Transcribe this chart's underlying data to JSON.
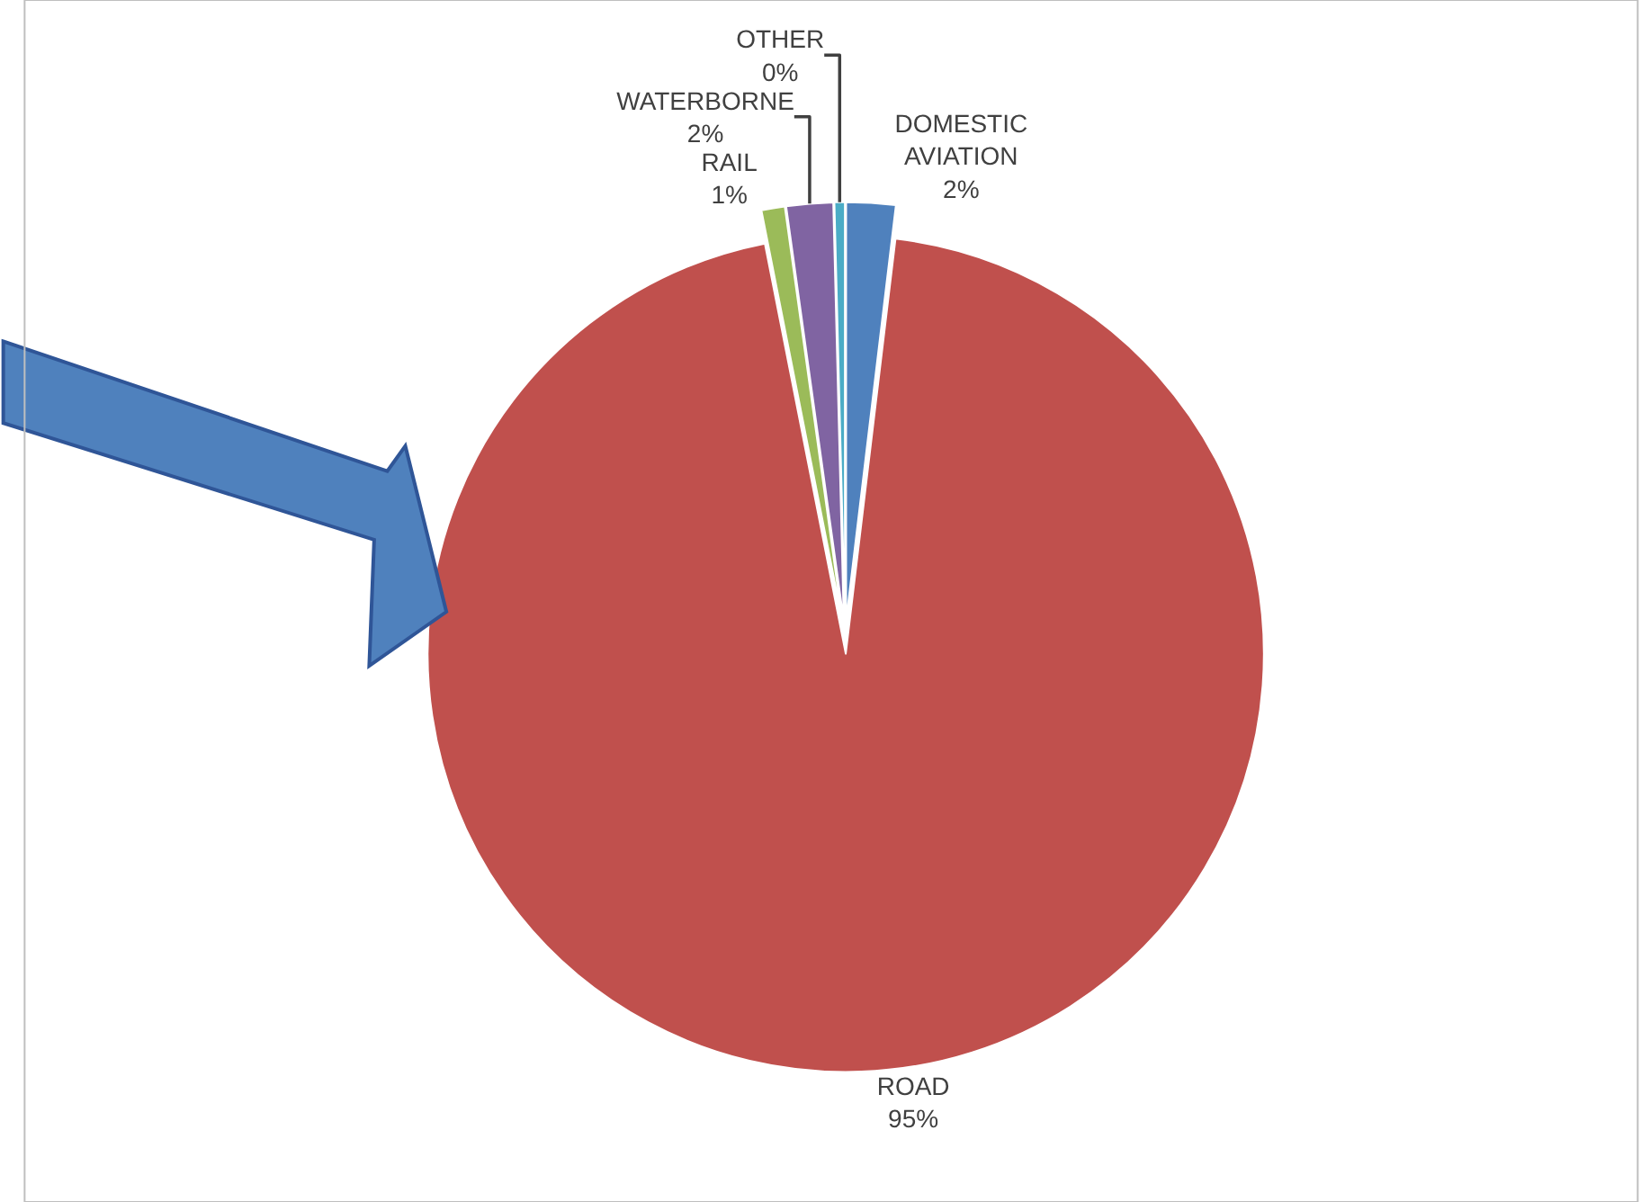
{
  "chart_data": {
    "type": "pie",
    "categories": [
      "DOMESTIC AVIATION",
      "ROAD",
      "RAIL",
      "WATERBORNE",
      "OTHER"
    ],
    "values": [
      1.9,
      95.0,
      0.9,
      1.8,
      0.4
    ],
    "value_labels": [
      "2%",
      "95%",
      "1%",
      "2%",
      "0%"
    ],
    "colors": [
      "#4f81bd",
      "#c0504d",
      "#9bbb59",
      "#8064a2",
      "#4bacc6"
    ],
    "legend": false
  }
}
